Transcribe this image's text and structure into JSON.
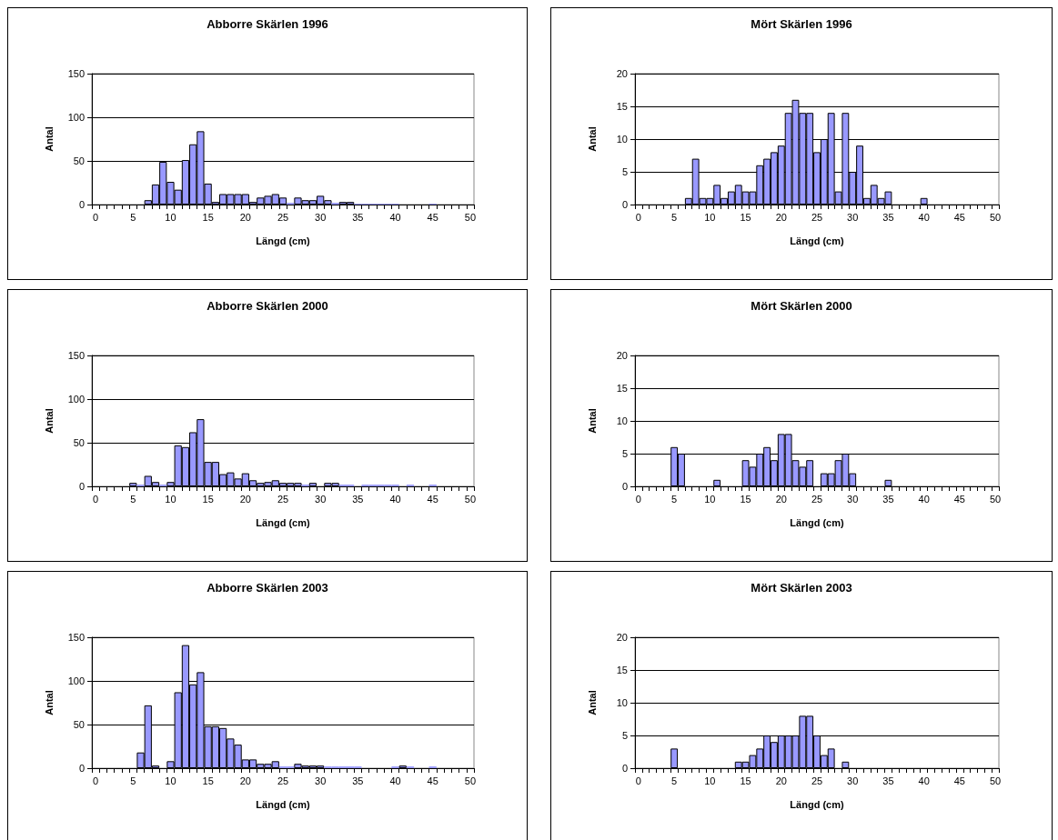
{
  "chart_data": [
    {
      "type": "bar",
      "title": "Abborre Skärlen 1996",
      "xlabel": "Längd (cm)",
      "ylabel": "Antal",
      "color": "#9999ff",
      "ylim": [
        0,
        150
      ],
      "yticks": [
        0,
        50,
        100,
        150
      ],
      "grid": "y",
      "categories": [
        "0",
        null,
        null,
        null,
        null,
        "5",
        null,
        null,
        null,
        null,
        "10",
        null,
        null,
        null,
        null,
        "15",
        null,
        null,
        null,
        null,
        "20",
        null,
        null,
        null,
        null,
        "25",
        null,
        null,
        null,
        null,
        "30",
        null,
        null,
        null,
        null,
        "35",
        null,
        null,
        null,
        null,
        "40",
        null,
        null,
        null,
        null,
        "45",
        null,
        null,
        null,
        null,
        "50"
      ],
      "values": [
        0,
        0,
        0,
        0,
        0,
        0,
        0,
        5,
        23,
        49,
        26,
        17,
        51,
        69,
        84,
        24,
        3,
        12,
        12,
        12,
        12,
        3,
        8,
        10,
        12,
        8,
        2,
        8,
        5,
        5,
        10,
        5,
        2,
        3,
        3,
        1,
        1,
        1,
        1,
        1,
        1,
        0,
        0,
        0,
        0,
        1,
        0,
        0,
        0,
        0,
        0
      ]
    },
    {
      "type": "bar",
      "title": "Mört Skärlen 1996",
      "xlabel": "Längd (cm)",
      "ylabel": "Antal",
      "color": "#9999ff",
      "ylim": [
        0,
        20
      ],
      "yticks": [
        0,
        5,
        10,
        15,
        20
      ],
      "grid": "y",
      "categories": [
        "0",
        null,
        null,
        null,
        null,
        "5",
        null,
        null,
        null,
        null,
        "10",
        null,
        null,
        null,
        null,
        "15",
        null,
        null,
        null,
        null,
        "20",
        null,
        null,
        null,
        null,
        "25",
        null,
        null,
        null,
        null,
        "30",
        null,
        null,
        null,
        null,
        "35",
        null,
        null,
        null,
        null,
        "40",
        null,
        null,
        null,
        null,
        "45",
        null,
        null,
        null,
        null,
        "50"
      ],
      "values": [
        0,
        0,
        0,
        0,
        0,
        0,
        0,
        1,
        7,
        1,
        1,
        3,
        1,
        2,
        3,
        2,
        2,
        6,
        7,
        8,
        9,
        14,
        16,
        14,
        14,
        8,
        10,
        14,
        2,
        14,
        5,
        9,
        1,
        3,
        1,
        2,
        0,
        0,
        0,
        0,
        1,
        0,
        0,
        0,
        0,
        0,
        0,
        0,
        0,
        0,
        0
      ]
    },
    {
      "type": "bar",
      "title": "Abborre Skärlen 2000",
      "xlabel": "Längd (cm)",
      "ylabel": "Antal",
      "color": "#9999ff",
      "ylim": [
        0,
        150
      ],
      "yticks": [
        0,
        50,
        100,
        150
      ],
      "grid": "y",
      "categories": [
        "0",
        null,
        null,
        null,
        null,
        "5",
        null,
        null,
        null,
        null,
        "10",
        null,
        null,
        null,
        null,
        "15",
        null,
        null,
        null,
        null,
        "20",
        null,
        null,
        null,
        null,
        "25",
        null,
        null,
        null,
        null,
        "30",
        null,
        null,
        null,
        null,
        "35",
        null,
        null,
        null,
        null,
        "40",
        null,
        null,
        null,
        null,
        "45",
        null,
        null,
        null,
        null,
        "50"
      ],
      "values": [
        0,
        0,
        0,
        0,
        0,
        4,
        2,
        12,
        5,
        2,
        5,
        47,
        45,
        62,
        77,
        28,
        28,
        14,
        16,
        9,
        15,
        7,
        4,
        5,
        7,
        4,
        4,
        4,
        2,
        4,
        0,
        4,
        4,
        2,
        2,
        0,
        2,
        2,
        2,
        2,
        2,
        0,
        2,
        0,
        0,
        2,
        0,
        0,
        0,
        0,
        0
      ]
    },
    {
      "type": "bar",
      "title": "Mört Skärlen 2000",
      "xlabel": "Längd (cm)",
      "ylabel": "Antal",
      "color": "#9999ff",
      "ylim": [
        0,
        20
      ],
      "yticks": [
        0,
        5,
        10,
        15,
        20
      ],
      "grid": "y",
      "categories": [
        "0",
        null,
        null,
        null,
        null,
        "5",
        null,
        null,
        null,
        null,
        "10",
        null,
        null,
        null,
        null,
        "15",
        null,
        null,
        null,
        null,
        "20",
        null,
        null,
        null,
        null,
        "25",
        null,
        null,
        null,
        null,
        "30",
        null,
        null,
        null,
        null,
        "35",
        null,
        null,
        null,
        null,
        "40",
        null,
        null,
        null,
        null,
        "45",
        null,
        null,
        null,
        null,
        "50"
      ],
      "values": [
        0,
        0,
        0,
        0,
        0,
        6,
        5,
        0,
        0,
        0,
        0,
        1,
        0,
        0,
        0,
        4,
        3,
        5,
        6,
        4,
        8,
        8,
        4,
        3,
        4,
        0,
        2,
        2,
        4,
        5,
        2,
        0,
        0,
        0,
        0,
        1,
        0,
        0,
        0,
        0,
        0,
        0,
        0,
        0,
        0,
        0,
        0,
        0,
        0,
        0,
        0
      ]
    },
    {
      "type": "bar",
      "title": "Abborre Skärlen 2003",
      "xlabel": "Längd (cm)",
      "ylabel": "Antal",
      "color": "#9999ff",
      "ylim": [
        0,
        150
      ],
      "yticks": [
        0,
        50,
        100,
        150
      ],
      "grid": "y",
      "categories": [
        "0",
        null,
        null,
        null,
        null,
        "5",
        null,
        null,
        null,
        null,
        "10",
        null,
        null,
        null,
        null,
        "15",
        null,
        null,
        null,
        null,
        "20",
        null,
        null,
        null,
        null,
        "25",
        null,
        null,
        null,
        null,
        "30",
        null,
        null,
        null,
        null,
        "35",
        null,
        null,
        null,
        null,
        "40",
        null,
        null,
        null,
        null,
        "45",
        null,
        null,
        null,
        null,
        "50"
      ],
      "values": [
        0,
        0,
        0,
        0,
        0,
        0,
        18,
        72,
        3,
        0,
        8,
        87,
        141,
        96,
        110,
        48,
        48,
        46,
        34,
        27,
        10,
        10,
        5,
        5,
        8,
        2,
        2,
        5,
        3,
        3,
        3,
        2,
        2,
        2,
        2,
        2,
        0,
        0,
        0,
        0,
        2,
        3,
        2,
        0,
        0,
        2,
        0,
        0,
        0,
        0,
        0
      ]
    },
    {
      "type": "bar",
      "title": "Mört Skärlen 2003",
      "xlabel": "Längd (cm)",
      "ylabel": "Antal",
      "color": "#9999ff",
      "ylim": [
        0,
        20
      ],
      "yticks": [
        0,
        5,
        10,
        15,
        20
      ],
      "grid": "y",
      "categories": [
        "0",
        null,
        null,
        null,
        null,
        "5",
        null,
        null,
        null,
        null,
        "10",
        null,
        null,
        null,
        null,
        "15",
        null,
        null,
        null,
        null,
        "20",
        null,
        null,
        null,
        null,
        "25",
        null,
        null,
        null,
        null,
        "30",
        null,
        null,
        null,
        null,
        "35",
        null,
        null,
        null,
        null,
        "40",
        null,
        null,
        null,
        null,
        "45",
        null,
        null,
        null,
        null,
        "50"
      ],
      "values": [
        0,
        0,
        0,
        0,
        0,
        3,
        0,
        0,
        0,
        0,
        0,
        0,
        0,
        0,
        1,
        1,
        2,
        3,
        5,
        4,
        5,
        5,
        5,
        8,
        8,
        5,
        2,
        3,
        0,
        1,
        0,
        0,
        0,
        0,
        0,
        0,
        0,
        0,
        0,
        0,
        0,
        0,
        0,
        0,
        0,
        0,
        0,
        0,
        0,
        0,
        0
      ]
    }
  ]
}
